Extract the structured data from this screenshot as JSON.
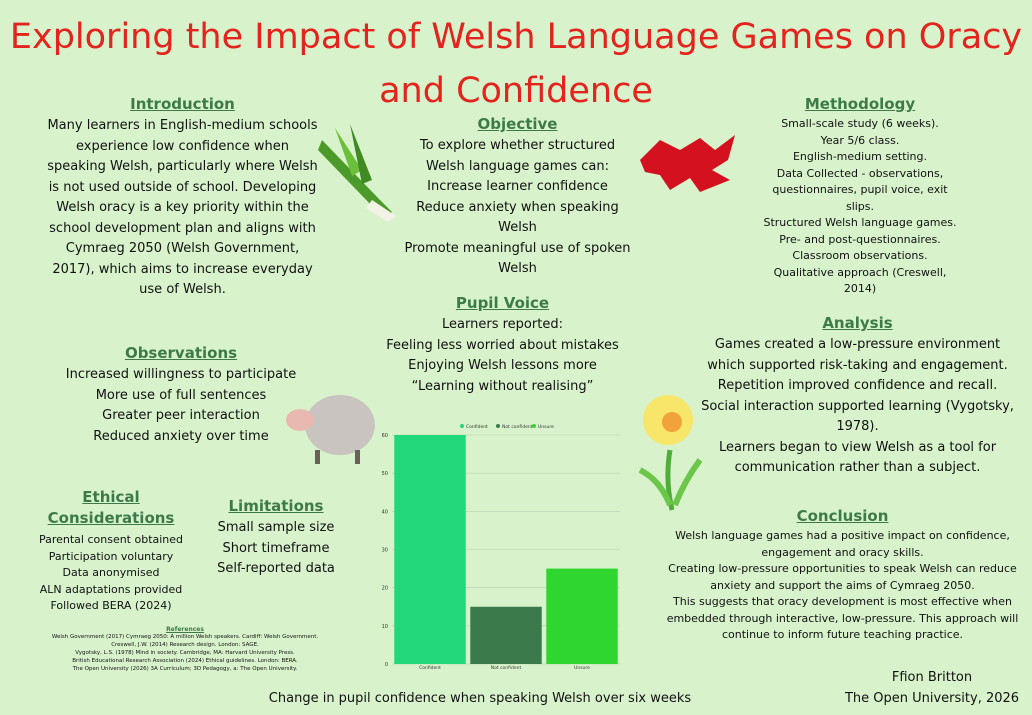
{
  "title": [
    "Exploring the Impact of Welsh Language Games on Oracy",
    "and Confidence"
  ],
  "sections": {
    "introduction": {
      "heading": "Introduction",
      "lines": [
        "Many learners in English-medium schools experience low confidence when speaking Welsh, particularly where Welsh is not used outside of school. Developing Welsh oracy is a key priority within the school development plan and aligns with Cymraeg 2050 (Welsh Government, 2017), which aims to increase everyday use of Welsh."
      ]
    },
    "objective": {
      "heading": "Objective",
      "lines": [
        "To explore whether structured Welsh language games can:",
        "Increase learner confidence",
        "Reduce anxiety when speaking Welsh",
        "Promote meaningful use of spoken Welsh"
      ]
    },
    "methodology": {
      "heading": "Methodology",
      "lines": [
        "Small-scale study (6 weeks).",
        "Year 5/6 class.",
        "English-medium setting.",
        "Data Collected - observations, questionnaires, pupil voice, exit slips.",
        "Structured Welsh language games.",
        "Pre- and post-questionnaires.",
        "Classroom observations.",
        "Qualitative approach (Creswell, 2014)"
      ]
    },
    "observations": {
      "heading": "Observations",
      "lines": [
        "Increased willingness to participate",
        "More use of full sentences",
        "Greater peer interaction",
        "Reduced anxiety over time"
      ]
    },
    "pupil_voice": {
      "heading": "Pupil Voice",
      "lines": [
        "Learners reported:",
        "Feeling less worried about mistakes",
        "Enjoying Welsh lessons more",
        "“Learning without realising”"
      ]
    },
    "analysis": {
      "heading": "Analysis",
      "lines": [
        "Games created a low-pressure environment which supported risk-taking and engagement.",
        "Repetition improved confidence and recall.",
        "Social interaction supported learning (Vygotsky, 1978).",
        "Learners began to view Welsh as a tool for communication rather than a subject."
      ]
    },
    "ethical": {
      "heading": "Ethical Considerations",
      "lines": [
        "Parental consent obtained",
        "Participation voluntary",
        "Data anonymised",
        "ALN adaptations provided",
        "Followed BERA (2024)"
      ]
    },
    "limitations": {
      "heading": "Limitations",
      "lines": [
        "Small sample size",
        "Short timeframe",
        "Self-reported data"
      ]
    },
    "conclusion": {
      "heading": "Conclusion",
      "lines": [
        "Welsh language games had a positive impact on confidence, engagement and oracy skills.",
        "Creating low-pressure opportunities to speak Welsh can reduce anxiety and support the aims of Cymraeg 2050.",
        "This suggests that oracy development is most effective when embedded through interactive, low-pressure. This approach will continue to inform future teaching practice."
      ]
    },
    "references": {
      "heading": "References",
      "lines": [
        "Welsh Government (2017) Cymraeg 2050: A million Welsh speakers. Cardiff: Welsh Government.",
        "Creswell, J.W. (2014) Research design. London: SAGE.",
        "Vygotsky, L.S. (1978) Mind in society. Cambridge, MA: Harvard University Press.",
        "British Educational Research Association (2024) Ethical guidelines. London: BERA.",
        "The Open University (2026) 3A Curriculum; 3D Pedagogy, a: The Open University."
      ]
    }
  },
  "author": "Ffion Britton",
  "affiliation": "The Open University, 2026",
  "chart_data": {
    "type": "bar",
    "x_label": "Change in pupil confidence when speaking Welsh over six weeks",
    "categories": [
      "Confident",
      "Not confident",
      "Unsure"
    ],
    "values": [
      60,
      15,
      25
    ],
    "colors": [
      "#22d67a",
      "#3b7a4b",
      "#2fd62f"
    ],
    "ylim": [
      0,
      60
    ],
    "yticks": [
      0,
      10,
      20,
      30,
      40,
      50,
      60
    ],
    "grid": true,
    "legend": "top"
  }
}
